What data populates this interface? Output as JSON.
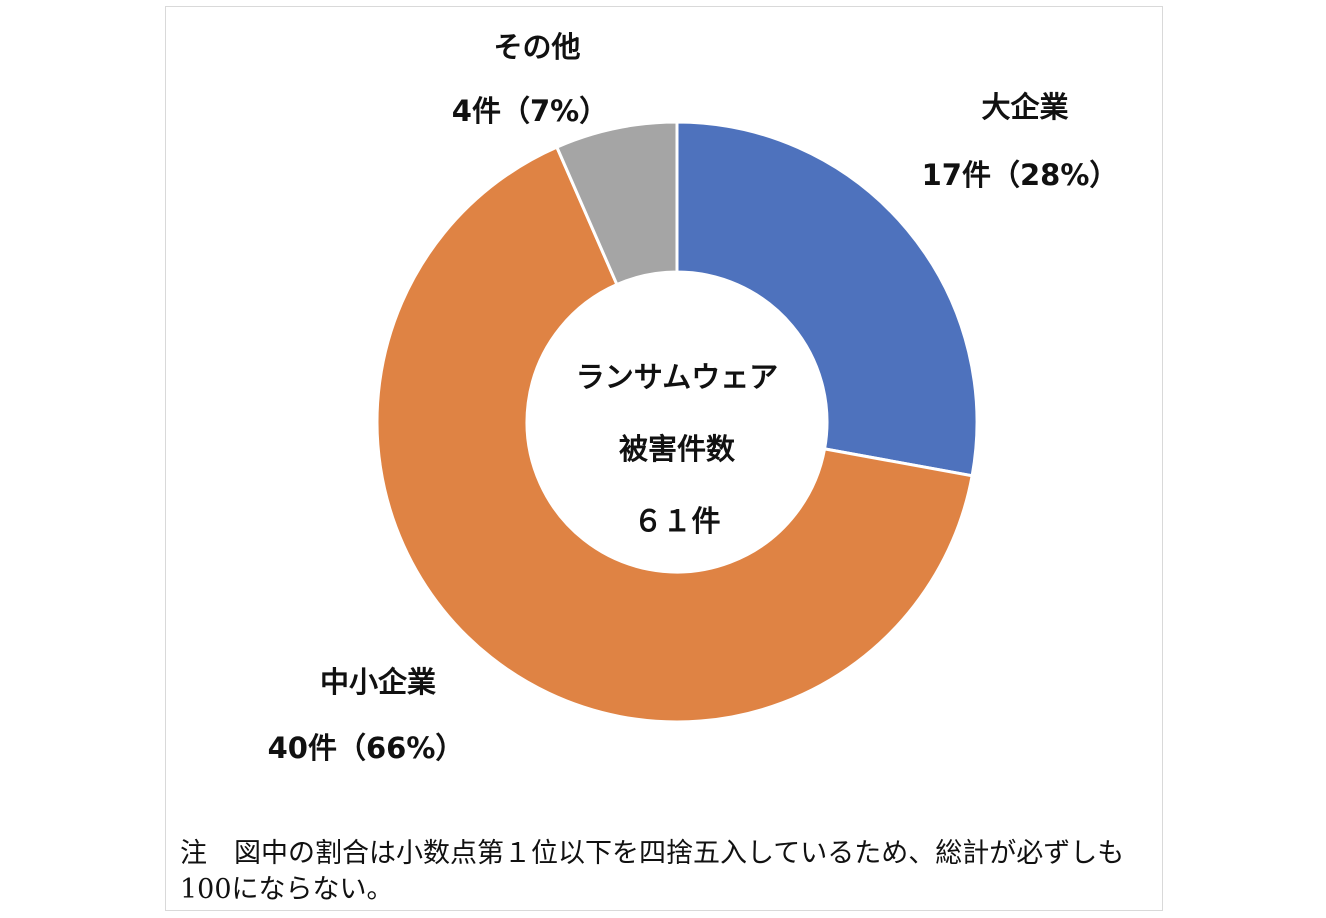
{
  "chart_data": {
    "type": "pie",
    "style": "donut",
    "categories": [
      "大企業",
      "中小企業",
      "その他"
    ],
    "values": [
      17,
      40,
      4
    ],
    "percent_labels": [
      "17件（28%）",
      "40件（66%）",
      "4件（7%）"
    ],
    "colors": [
      "#4e72bd",
      "#df8344",
      "#a5a5a5"
    ],
    "start": "12 o'clock, clockwise",
    "center_text": [
      "ランサムウェア",
      "被害件数",
      "６１件"
    ],
    "legend": "none"
  },
  "note": "注　図中の割合は小数点第１位以下を四捨五入しているため、総計が必ずしも100にならない。"
}
